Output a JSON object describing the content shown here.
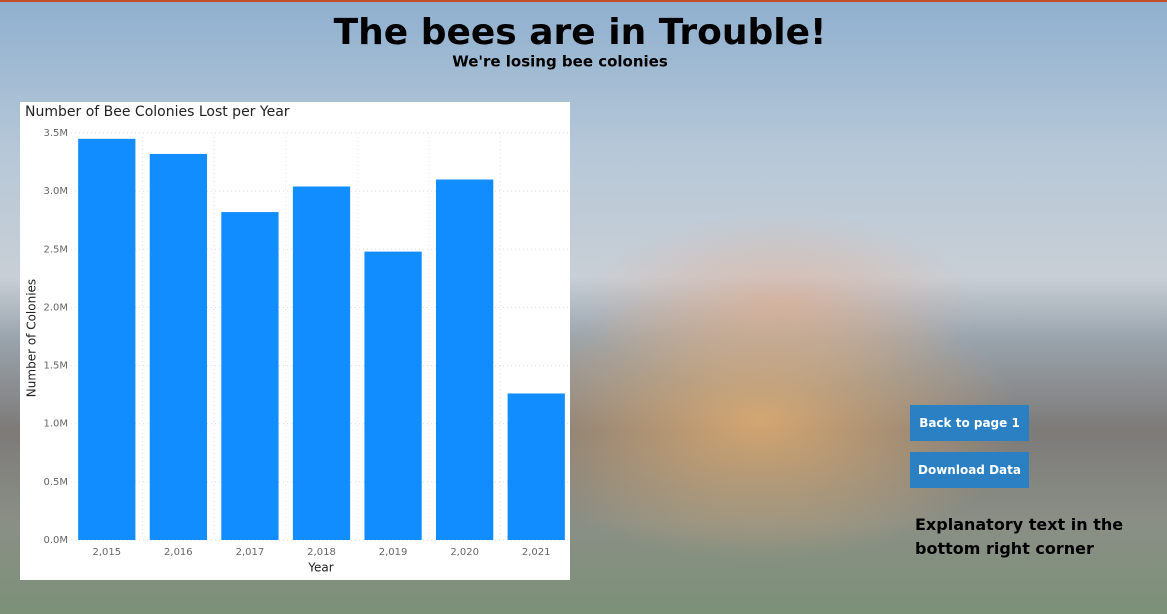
{
  "header": {
    "title": "The bees are in Trouble!",
    "subtitle": "We're losing bee colonies"
  },
  "chart_data": {
    "type": "bar",
    "title": "Number of Bee Colonies Lost per Year",
    "x_label": "Year",
    "y_label": "Number of Colonies",
    "categories": [
      "2,015",
      "2,016",
      "2,017",
      "2,018",
      "2,019",
      "2,020",
      "2,021"
    ],
    "values": [
      3450000,
      3320000,
      2820000,
      3040000,
      2480000,
      3100000,
      1260000
    ],
    "color": "#118dff",
    "ylim": [
      0,
      3500000
    ],
    "yticks": [
      {
        "value": 0,
        "label": "0.0M"
      },
      {
        "value": 500000,
        "label": "0.5M"
      },
      {
        "value": 1000000,
        "label": "1.0M"
      },
      {
        "value": 1500000,
        "label": "1.5M"
      },
      {
        "value": 2000000,
        "label": "2.0M"
      },
      {
        "value": 2500000,
        "label": "2.5M"
      },
      {
        "value": 3000000,
        "label": "3.0M"
      },
      {
        "value": 3500000,
        "label": "3.5M"
      }
    ],
    "grid": true
  },
  "buttons": [
    "Back to page 1",
    "Download Data"
  ],
  "note": "Explanatory text in the bottom right corner"
}
